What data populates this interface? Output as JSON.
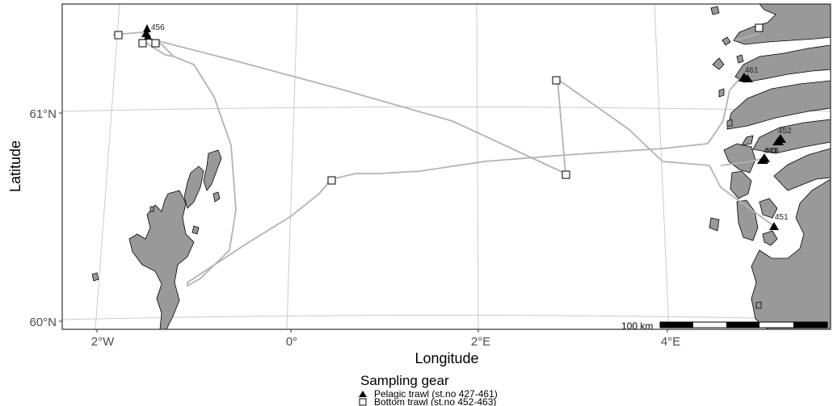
{
  "axes": {
    "xlabel": "Longitude",
    "ylabel": "Latitude",
    "x_ticks": [
      "2°W",
      "0°",
      "2°E",
      "4°E"
    ],
    "y_ticks": [
      "60°N",
      "61°N"
    ]
  },
  "legend": {
    "title": "Sampling gear",
    "items": [
      {
        "symbol": "filled-triangle",
        "label": "Pelagic trawl (st.no 427-461)"
      },
      {
        "symbol": "open-square",
        "label": "Bottom trawl (st.no 452-463)"
      }
    ]
  },
  "scale_bar": {
    "label": "100 km"
  },
  "station_labels": [
    "456",
    "461",
    "452",
    "443",
    "448",
    "451"
  ],
  "colors": {
    "land": "#999999",
    "track": "#b3b3b3",
    "grid": "#cccccc",
    "marker": "#000000"
  }
}
